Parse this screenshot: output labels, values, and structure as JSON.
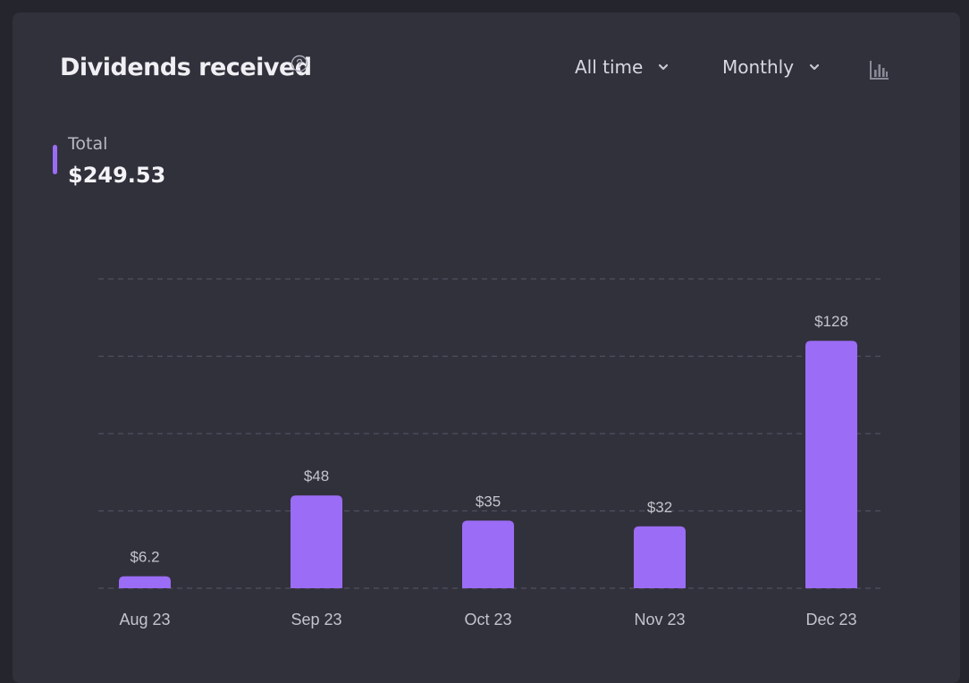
{
  "header": {
    "title": "Dividends received",
    "help_icon": "question-circle-icon",
    "range_dropdown": {
      "label": "All time",
      "icon": "chevron-down-icon"
    },
    "frequency_dropdown": {
      "label": "Monthly",
      "icon": "chevron-down-icon"
    },
    "chart_type_icon": "bar-chart-icon"
  },
  "legend": {
    "label": "Total",
    "value": "$249.53",
    "color": "#9b6cf5"
  },
  "colors": {
    "background": "#25252d",
    "card": "#31313c",
    "bar": "#9b6cf5",
    "grid": "#50505e",
    "label": "#c4c4cc"
  },
  "chart_data": {
    "type": "bar",
    "categories": [
      "Aug 23",
      "Sep 23",
      "Oct 23",
      "Nov 23",
      "Dec 23"
    ],
    "values": [
      6.2,
      48,
      35,
      32,
      128
    ],
    "data_labels": [
      "$6.2",
      "$48",
      "$35",
      "$32",
      "$128"
    ],
    "ylim": [
      0,
      160
    ],
    "grid": true,
    "title": "",
    "xlabel": "",
    "ylabel": ""
  }
}
